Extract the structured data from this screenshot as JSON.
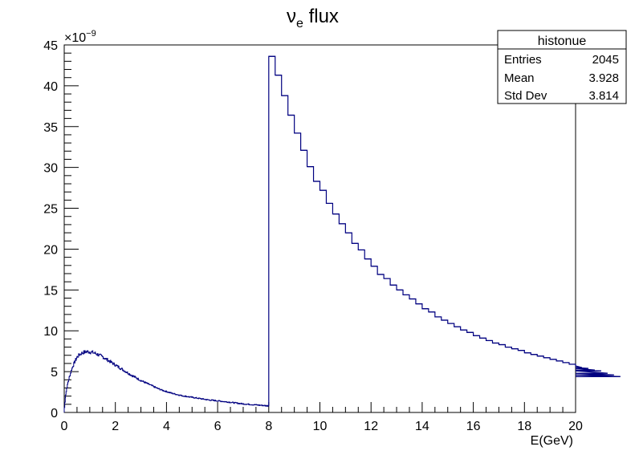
{
  "chart_data": {
    "type": "histogram",
    "title": "ν_e flux",
    "title_main": "ν",
    "title_sub": "e",
    "title_rest": " flux",
    "xlabel": "E(GeV)",
    "ylabel": "",
    "y_exponent_label": "×10",
    "y_exponent_power": "−9",
    "xlim": [
      0,
      20
    ],
    "ylim": [
      0,
      45
    ],
    "x_ticks": [
      0,
      2,
      4,
      6,
      8,
      10,
      12,
      14,
      16,
      18,
      20
    ],
    "y_ticks": [
      0,
      5,
      10,
      15,
      20,
      25,
      30,
      35,
      40,
      45
    ],
    "line_color": "#000080",
    "grid": false,
    "low_energy_points": [
      [
        0.0,
        0.6
      ],
      [
        0.05,
        2.2
      ],
      [
        0.1,
        3.1
      ],
      [
        0.15,
        3.8
      ],
      [
        0.2,
        4.4
      ],
      [
        0.25,
        4.9
      ],
      [
        0.3,
        5.4
      ],
      [
        0.35,
        5.8
      ],
      [
        0.4,
        6.2
      ],
      [
        0.45,
        6.5
      ],
      [
        0.5,
        6.8
      ],
      [
        0.6,
        7.1
      ],
      [
        0.7,
        7.3
      ],
      [
        0.8,
        7.4
      ],
      [
        0.9,
        7.45
      ],
      [
        1.0,
        7.4
      ],
      [
        1.1,
        7.35
      ],
      [
        1.2,
        7.25
      ],
      [
        1.3,
        7.1
      ],
      [
        1.4,
        6.95
      ],
      [
        1.5,
        6.8
      ],
      [
        1.6,
        6.6
      ],
      [
        1.7,
        6.4
      ],
      [
        1.8,
        6.2
      ],
      [
        1.9,
        6.0
      ],
      [
        2.0,
        5.8
      ],
      [
        2.2,
        5.4
      ],
      [
        2.4,
        5.0
      ],
      [
        2.6,
        4.6
      ],
      [
        2.8,
        4.25
      ],
      [
        3.0,
        3.9
      ],
      [
        3.2,
        3.6
      ],
      [
        3.4,
        3.3
      ],
      [
        3.6,
        3.0
      ],
      [
        3.8,
        2.75
      ],
      [
        4.0,
        2.55
      ],
      [
        4.2,
        2.35
      ],
      [
        4.4,
        2.2
      ],
      [
        4.6,
        2.05
      ],
      [
        4.8,
        1.95
      ],
      [
        5.0,
        1.85
      ],
      [
        5.2,
        1.75
      ],
      [
        5.4,
        1.65
      ],
      [
        5.6,
        1.55
      ],
      [
        5.8,
        1.48
      ],
      [
        6.0,
        1.42
      ],
      [
        6.2,
        1.35
      ],
      [
        6.4,
        1.28
      ],
      [
        6.6,
        1.2
      ],
      [
        6.8,
        1.12
      ],
      [
        7.0,
        1.05
      ],
      [
        7.2,
        1.0
      ],
      [
        7.4,
        0.95
      ],
      [
        7.6,
        0.9
      ],
      [
        7.8,
        0.85
      ],
      [
        8.0,
        0.8
      ]
    ],
    "high_energy_bin_width": 0.25,
    "high_energy_bins": [
      43.6,
      41.3,
      38.8,
      36.4,
      34.2,
      32.1,
      30.1,
      28.3,
      27.2,
      25.6,
      24.3,
      23.1,
      22.0,
      20.7,
      19.9,
      18.8,
      17.9,
      16.9,
      16.4,
      15.6,
      15.0,
      14.4,
      13.9,
      13.3,
      12.7,
      12.3,
      11.7,
      11.3,
      10.9,
      10.5,
      10.1,
      9.8,
      9.4,
      9.1,
      8.8,
      8.5,
      8.3,
      8.0,
      7.8,
      7.6,
      7.3,
      7.1,
      6.9,
      6.7,
      6.5,
      6.3,
      6.1,
      5.9,
      5.7,
      5.5,
      5.4,
      5.2,
      5.1,
      4.8,
      4.6,
      4.4
    ],
    "stats_box": {
      "title": "histonue",
      "rows": [
        {
          "label": "Entries",
          "value": "2045"
        },
        {
          "label": "Mean",
          "value": "3.928"
        },
        {
          "label": "Std Dev",
          "value": "3.814"
        }
      ]
    }
  }
}
